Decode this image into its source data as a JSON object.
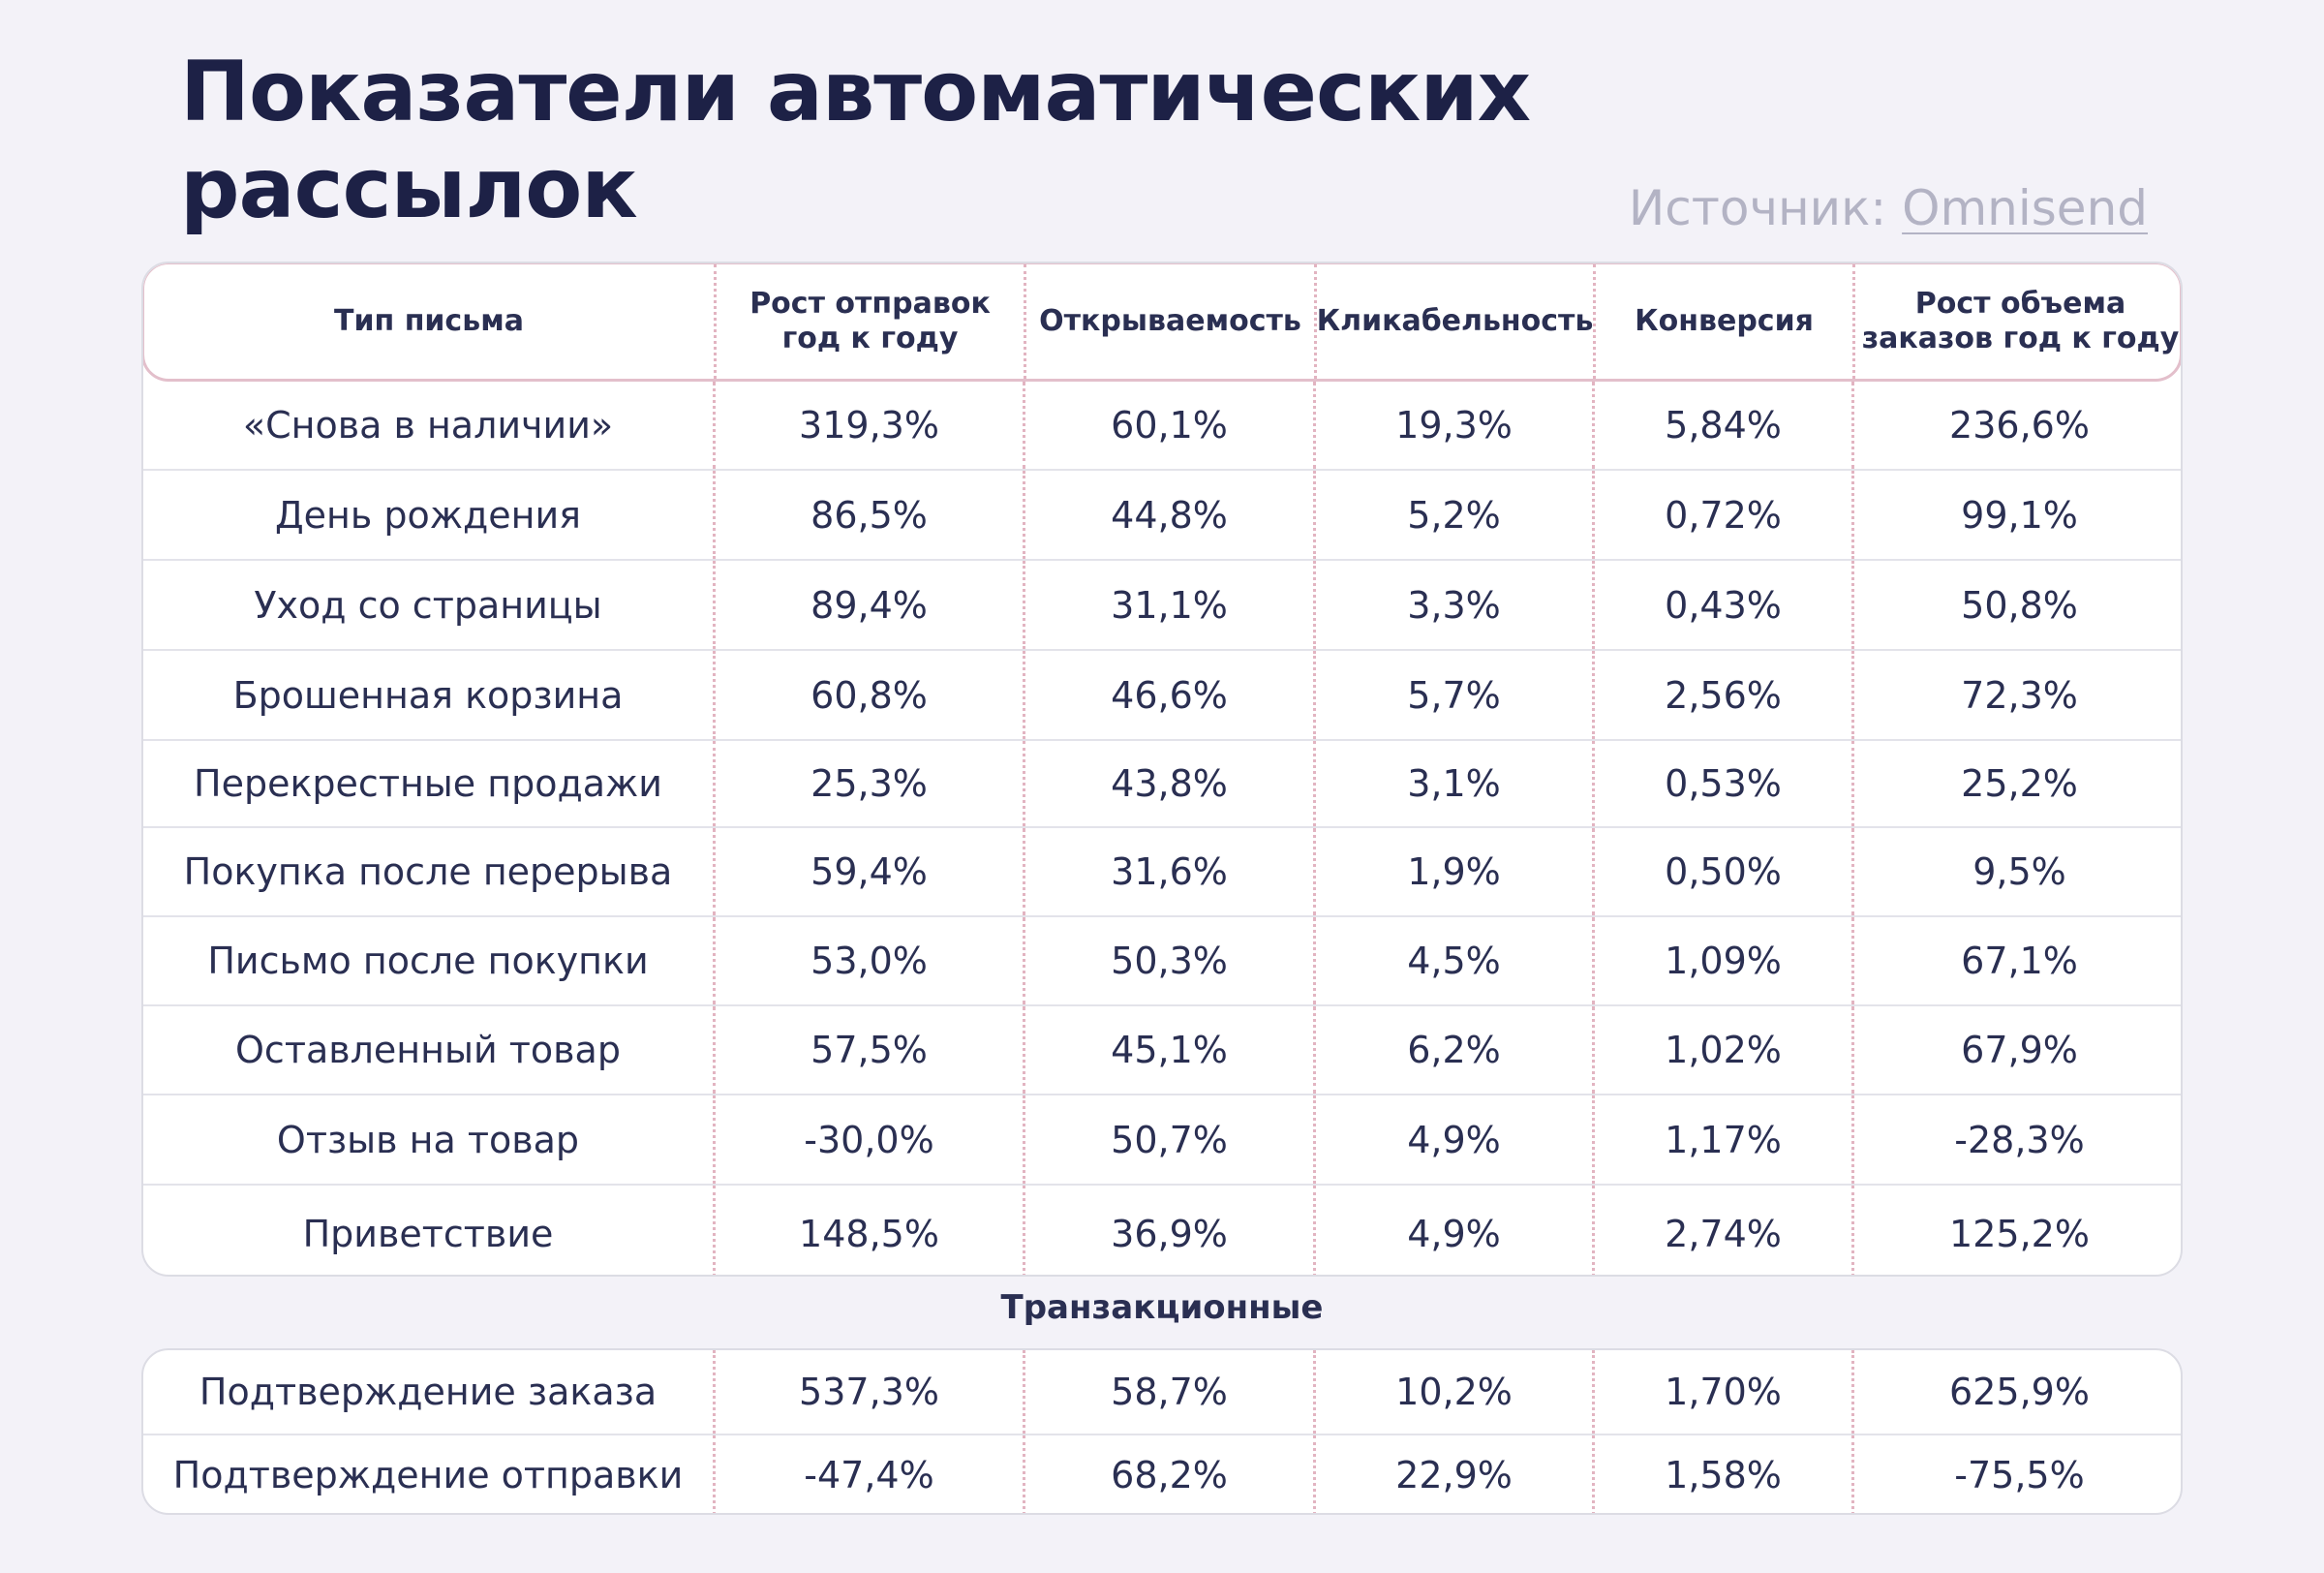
{
  "title_line1": "Показатели автоматических",
  "title_line2": "рассылок",
  "source": {
    "prefix": "Источник: ",
    "link": "Omnisend"
  },
  "columns": [
    "Тип письма",
    "Рост отправок год к году",
    "Открываемость",
    "Кликабельность",
    "Конверсия",
    "Рост объема заказов год к году"
  ],
  "rows": [
    [
      "«Снова в наличии»",
      "319,3%",
      "60,1%",
      "19,3%",
      "5,84%",
      "236,6%"
    ],
    [
      "День рождения",
      "86,5%",
      "44,8%",
      "5,2%",
      "0,72%",
      "99,1%"
    ],
    [
      "Уход со страницы",
      "89,4%",
      "31,1%",
      "3,3%",
      "0,43%",
      "50,8%"
    ],
    [
      "Брошенная корзина",
      "60,8%",
      "46,6%",
      "5,7%",
      "2,56%",
      "72,3%"
    ],
    [
      "Перекрестные продажи",
      "25,3%",
      "43,8%",
      "3,1%",
      "0,53%",
      "25,2%"
    ],
    [
      "Покупка после перерыва",
      "59,4%",
      "31,6%",
      "1,9%",
      "0,50%",
      "9,5%"
    ],
    [
      "Письмо после покупки",
      "53,0%",
      "50,3%",
      "4,5%",
      "1,09%",
      "67,1%"
    ],
    [
      "Оставленный товар",
      "57,5%",
      "45,1%",
      "6,2%",
      "1,02%",
      "67,9%"
    ],
    [
      "Отзыв на товар",
      "-30,0%",
      "50,7%",
      "4,9%",
      "1,17%",
      "-28,3%"
    ],
    [
      "Приветствие",
      "148,5%",
      "36,9%",
      "4,9%",
      "2,74%",
      "125,2%"
    ]
  ],
  "transactional_label": "Транзакционные",
  "transactional_rows": [
    [
      "Подтверждение заказа",
      "537,3%",
      "58,7%",
      "10,2%",
      "1,70%",
      "625,9%"
    ],
    [
      "Подтверждение отправки",
      "-47,4%",
      "68,2%",
      "22,9%",
      "1,58%",
      "-75,5%"
    ]
  ]
}
